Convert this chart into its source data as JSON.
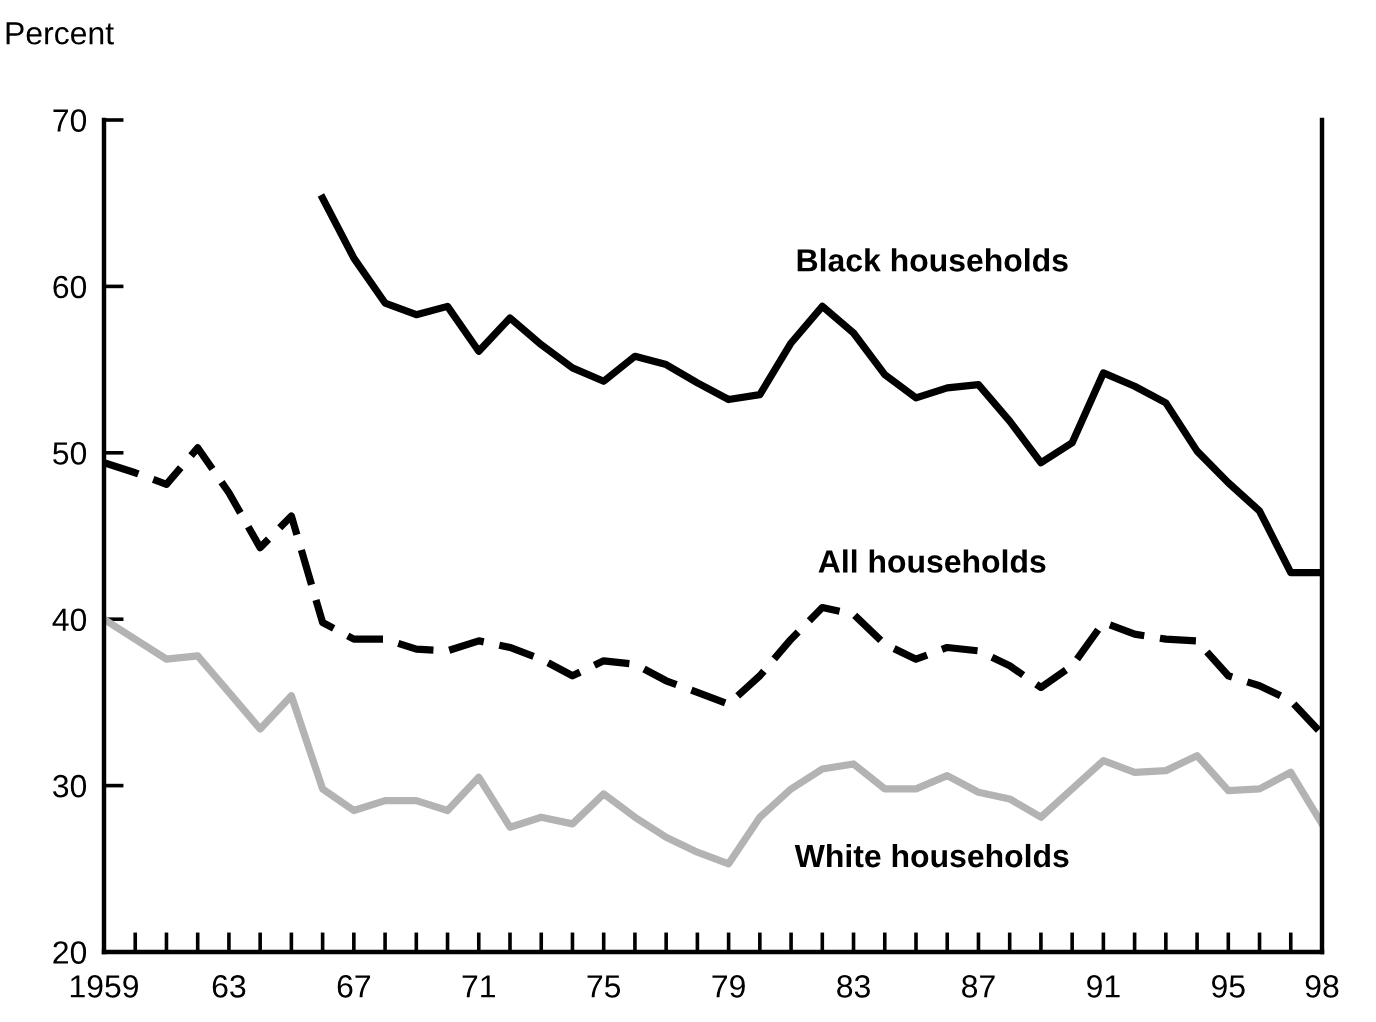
{
  "chart_data": {
    "type": "line",
    "ylabel": "Percent",
    "x": [
      1959,
      1960,
      1961,
      1962,
      1963,
      1964,
      1965,
      1966,
      1967,
      1968,
      1969,
      1970,
      1971,
      1972,
      1973,
      1974,
      1975,
      1976,
      1977,
      1978,
      1979,
      1980,
      1981,
      1982,
      1983,
      1984,
      1985,
      1986,
      1987,
      1988,
      1989,
      1990,
      1991,
      1992,
      1993,
      1994,
      1995,
      1996,
      1997,
      1998
    ],
    "series": [
      {
        "name": "Black households",
        "color": "#000000",
        "line_style": "solid",
        "x": [
          1966,
          1967,
          1968,
          1969,
          1970,
          1971,
          1972,
          1973,
          1974,
          1975,
          1976,
          1977,
          1978,
          1979,
          1980,
          1981,
          1982,
          1983,
          1984,
          1985,
          1986,
          1987,
          1988,
          1989,
          1990,
          1991,
          1992,
          1993,
          1994,
          1995,
          1996,
          1997,
          1998
        ],
        "values": [
          65.3,
          61.7,
          59.0,
          58.3,
          58.8,
          56.1,
          58.1,
          56.5,
          55.1,
          54.3,
          55.8,
          55.3,
          54.2,
          53.2,
          53.5,
          56.6,
          58.8,
          57.2,
          54.7,
          53.3,
          53.9,
          54.1,
          51.9,
          49.4,
          50.6,
          54.8,
          54.0,
          53.0,
          50.1,
          48.2,
          46.5,
          42.8,
          42.8
        ]
      },
      {
        "name": "All households",
        "color": "#000000",
        "line_style": "dashed",
        "values": [
          49.4,
          48.8,
          48.1,
          50.3,
          47.6,
          44.3,
          46.2,
          39.8,
          38.8,
          38.8,
          38.2,
          38.1,
          38.7,
          38.3,
          37.6,
          36.6,
          37.5,
          37.3,
          36.3,
          35.6,
          34.9,
          36.6,
          38.8,
          40.7,
          40.3,
          38.5,
          37.6,
          38.3,
          38.1,
          37.2,
          35.9,
          37.2,
          39.8,
          39.1,
          38.8,
          38.7,
          36.6,
          36.0,
          35.1,
          33.1
        ]
      },
      {
        "name": "White households",
        "color": "#b3b3b3",
        "line_style": "solid",
        "values": [
          40.0,
          38.8,
          37.6,
          37.8,
          35.6,
          33.4,
          35.4,
          29.8,
          28.5,
          29.1,
          29.1,
          28.5,
          30.5,
          27.5,
          28.1,
          27.7,
          29.5,
          28.1,
          26.9,
          26.0,
          25.3,
          28.1,
          29.8,
          31.0,
          31.3,
          29.8,
          29.8,
          30.6,
          29.6,
          29.2,
          28.1,
          29.8,
          31.5,
          30.8,
          30.9,
          31.8,
          29.7,
          29.8,
          30.8,
          27.7
        ]
      }
    ],
    "xlim": [
      1959,
      1998
    ],
    "ylim": [
      20,
      70
    ],
    "yticks": [
      20,
      30,
      40,
      50,
      60,
      70
    ],
    "xticks": [
      {
        "value": 1959,
        "label": "1959"
      },
      {
        "value": 1960,
        "label": null
      },
      {
        "value": 1961,
        "label": null
      },
      {
        "value": 1962,
        "label": null
      },
      {
        "value": 1963,
        "label": "63"
      },
      {
        "value": 1964,
        "label": null
      },
      {
        "value": 1965,
        "label": null
      },
      {
        "value": 1966,
        "label": null
      },
      {
        "value": 1967,
        "label": "67"
      },
      {
        "value": 1968,
        "label": null
      },
      {
        "value": 1969,
        "label": null
      },
      {
        "value": 1970,
        "label": null
      },
      {
        "value": 1971,
        "label": "71"
      },
      {
        "value": 1972,
        "label": null
      },
      {
        "value": 1973,
        "label": null
      },
      {
        "value": 1974,
        "label": null
      },
      {
        "value": 1975,
        "label": "75"
      },
      {
        "value": 1976,
        "label": null
      },
      {
        "value": 1977,
        "label": null
      },
      {
        "value": 1978,
        "label": null
      },
      {
        "value": 1979,
        "label": "79"
      },
      {
        "value": 1980,
        "label": null
      },
      {
        "value": 1981,
        "label": null
      },
      {
        "value": 1982,
        "label": null
      },
      {
        "value": 1983,
        "label": "83"
      },
      {
        "value": 1984,
        "label": null
      },
      {
        "value": 1985,
        "label": null
      },
      {
        "value": 1986,
        "label": null
      },
      {
        "value": 1987,
        "label": "87"
      },
      {
        "value": 1988,
        "label": null
      },
      {
        "value": 1989,
        "label": null
      },
      {
        "value": 1990,
        "label": null
      },
      {
        "value": 1991,
        "label": "91"
      },
      {
        "value": 1992,
        "label": null
      },
      {
        "value": 1993,
        "label": null
      },
      {
        "value": 1994,
        "label": null
      },
      {
        "value": 1995,
        "label": "95"
      },
      {
        "value": 1996,
        "label": null
      },
      {
        "value": 1997,
        "label": null
      },
      {
        "value": 1998,
        "label": "98"
      }
    ],
    "grid": false,
    "legend": false,
    "marker": "none"
  }
}
